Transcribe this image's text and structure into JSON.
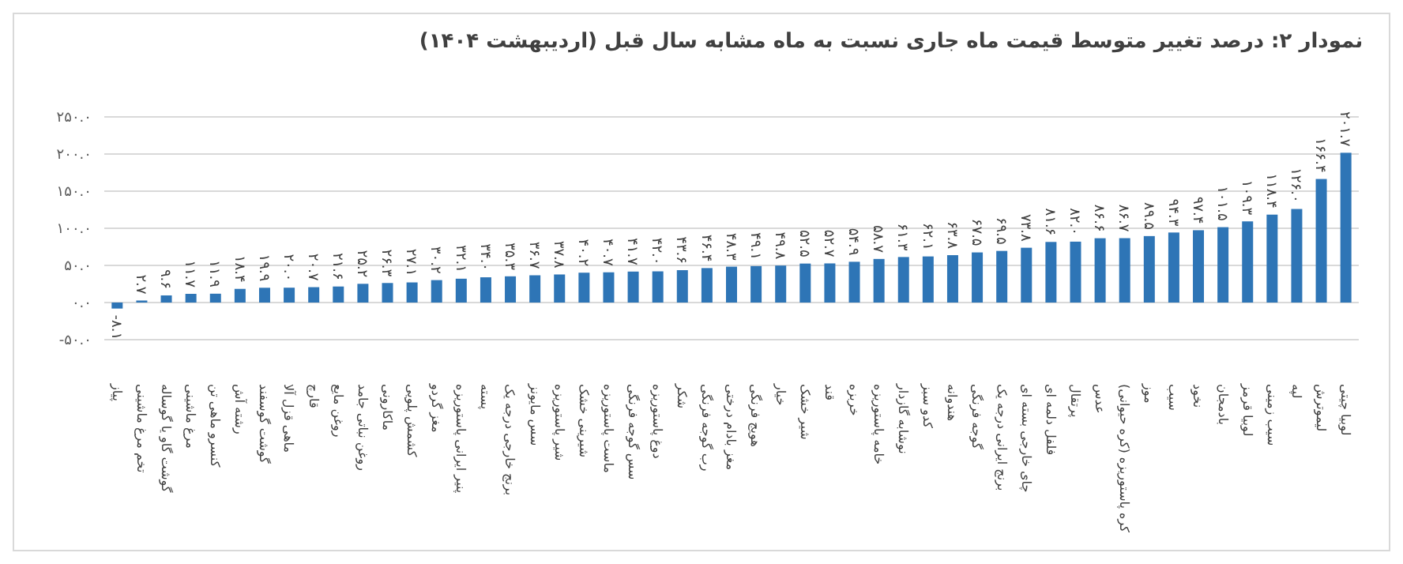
{
  "chart_data": {
    "type": "bar",
    "title": "نمودار ۲: درصد تغییر متوسط قیمت ماه جاری نسبت به ماه مشابه سال قبل (اردیبهشت ۱۴۰۴)",
    "categories": [
      "پیاز",
      "تخم مرغ ماشینی",
      "گوشت گاو یا گوساله",
      "مرغ ماشینی",
      "کنسرو ماهی تن",
      "رشته آش",
      "گوشت گوسفند",
      "ماهی قزل آلا",
      "قارچ",
      "روغن مایع",
      "روغن نباتی جامد",
      "ماکارونی",
      "کشمش پلویی",
      "مغز گردو",
      "پنیر ایرانی پاستوریزه",
      "پسته",
      "برنج خارجی درجه یک",
      "سس مایونز",
      "شیر پاستوریزه",
      "شیرینی خشک",
      "ماست پاستوریزه",
      "سس گوجه فرنگی",
      "دوغ پاستوریزه",
      "شکر",
      "رب گوجه فرنگی",
      "مغز بادام درختی",
      "هویج فرنگی",
      "خیار",
      "شیر خشک",
      "قند",
      "خربزه",
      "خامه پاستوریزه",
      "نوشابه گازدار",
      "کدو سبز",
      "هندوانه",
      "گوجه فرنگی",
      "برنج ایرانی درجه یک",
      "چای خارجی بسته ای",
      "فلفل دلمه ای",
      "پرتقال",
      "عدس",
      "کره پاستوریزه (کره حیوانی)",
      "موز",
      "سیب",
      "نخود",
      "بادمجان",
      "لوبیا قرمز",
      "سیب زمینی",
      "لپه",
      "لیموترش",
      "لوبیا چیتی"
    ],
    "values": [
      -8.1,
      2.7,
      9.6,
      11.7,
      11.9,
      18.4,
      19.9,
      20.0,
      20.7,
      21.6,
      25.2,
      26.3,
      27.1,
      30.2,
      32.1,
      34.0,
      35.3,
      36.7,
      37.8,
      40.2,
      40.7,
      41.7,
      42.0,
      43.6,
      46.4,
      48.3,
      49.1,
      49.8,
      52.5,
      52.7,
      54.9,
      58.7,
      61.3,
      62.1,
      63.8,
      67.5,
      69.5,
      73.8,
      81.6,
      82.0,
      86.6,
      86.7,
      89.5,
      94.3,
      97.4,
      101.5,
      109.3,
      118.4,
      126.0,
      166.4,
      201.7
    ],
    "value_labels": [
      "-۸.۱",
      "۲.۷",
      "۹.۶",
      "۱۱.۷",
      "۱۱.۹",
      "۱۸.۴",
      "۱۹.۹",
      "۲۰.۰",
      "۲۰.۷",
      "۲۱.۶",
      "۲۵.۲",
      "۲۶.۳",
      "۲۷.۱",
      "۳۰.۲",
      "۳۲.۱",
      "۳۴.۰",
      "۳۵.۳",
      "۳۶.۷",
      "۳۷.۸",
      "۴۰.۲",
      "۴۰.۷",
      "۴۱.۷",
      "۴۲.۰",
      "۴۳.۶",
      "۴۶.۴",
      "۴۸.۳",
      "۴۹.۱",
      "۴۹.۸",
      "۵۲.۵",
      "۵۲.۷",
      "۵۴.۹",
      "۵۸.۷",
      "۶۱.۳",
      "۶۲.۱",
      "۶۳.۸",
      "۶۷.۵",
      "۶۹.۵",
      "۷۳.۸",
      "۸۱.۶",
      "۸۲.۰",
      "۸۶.۶",
      "۸۶.۷",
      "۸۹.۵",
      "۹۴.۳",
      "۹۷.۴",
      "۱۰۱.۵",
      "۱۰۹.۳",
      "۱۱۸.۴",
      "۱۲۶.۰",
      "۱۶۶.۴",
      "۲۰۱.۷"
    ],
    "color": "#2e75b6",
    "ylim": [
      -50,
      250
    ],
    "yticks": [
      {
        "value": -50,
        "label": "-۵۰.۰"
      },
      {
        "value": 0,
        "label": "۰.۰"
      },
      {
        "value": 50,
        "label": "۵۰.۰"
      },
      {
        "value": 100,
        "label": "۱۰۰.۰"
      },
      {
        "value": 150,
        "label": "۱۵۰.۰"
      },
      {
        "value": 200,
        "label": "۲۰۰.۰"
      },
      {
        "value": 250,
        "label": "۲۵۰.۰"
      }
    ],
    "grid": "y"
  }
}
